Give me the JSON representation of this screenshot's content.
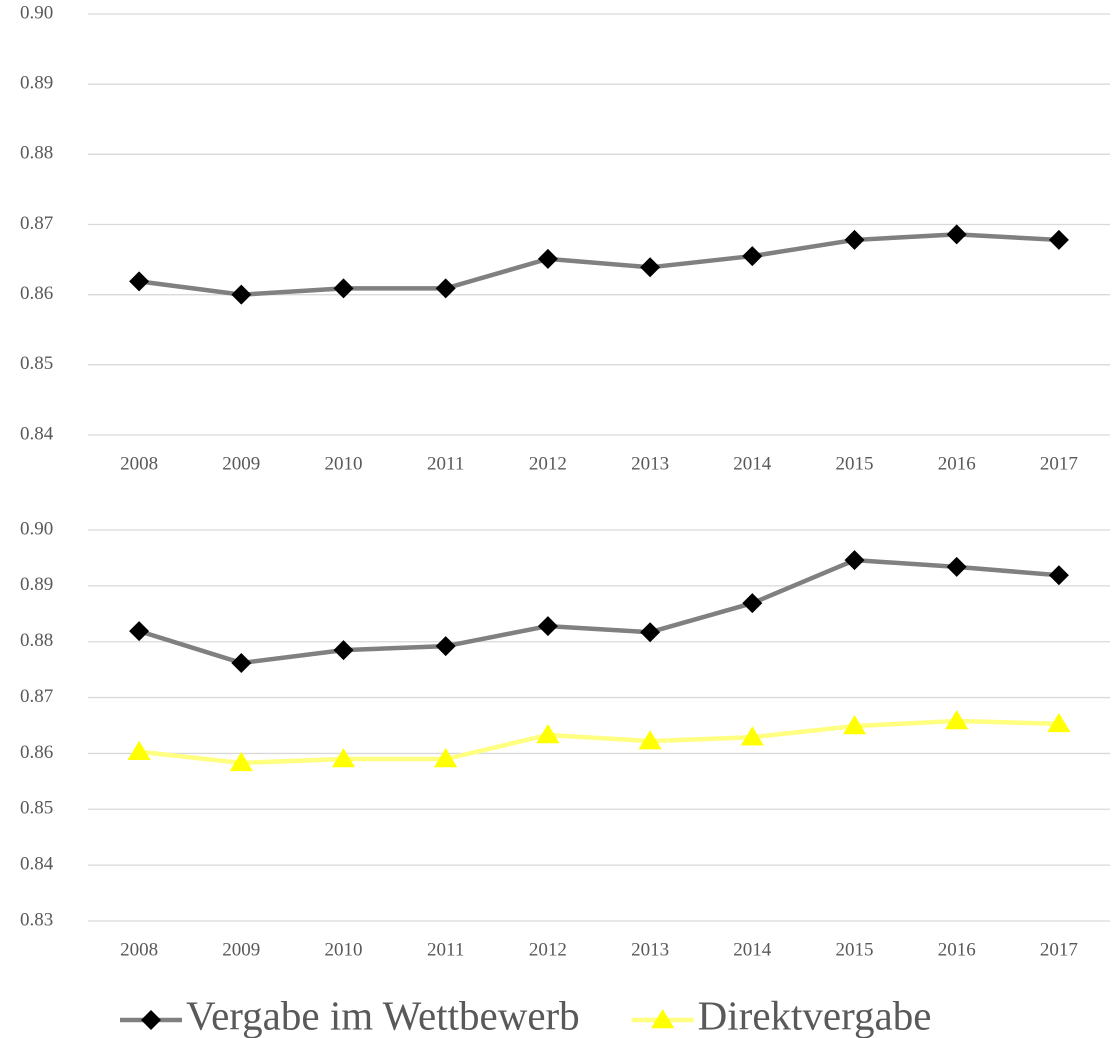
{
  "chart_data": [
    {
      "type": "line",
      "categories": [
        "2008",
        "2009",
        "2010",
        "2011",
        "2012",
        "2013",
        "2014",
        "2015",
        "2016",
        "2017"
      ],
      "series": [
        {
          "color": "#808080",
          "marker": "diamond",
          "marker_color": "#000000",
          "values": [
            0.8619,
            0.86,
            0.8609,
            0.8609,
            0.8651,
            0.8639,
            0.8655,
            0.8678,
            0.8686,
            0.8678
          ]
        }
      ],
      "ylim": [
        0.84,
        0.9
      ],
      "yticks": [
        0.84,
        0.85,
        0.86,
        0.87,
        0.88,
        0.89,
        {
          "value": 0.9,
          "label": "0.90"
        }
      ],
      "grid": true
    },
    {
      "type": "line",
      "categories": [
        "2008",
        "2009",
        "2010",
        "2011",
        "2012",
        "2013",
        "2014",
        "2015",
        "2016",
        "2017"
      ],
      "series": [
        {
          "name": "Vergabe im Wettbewerb",
          "color": "#808080",
          "marker": "diamond",
          "marker_color": "#000000",
          "values": [
            0.8819,
            0.8762,
            0.8785,
            0.8792,
            0.8828,
            0.8817,
            0.8869,
            0.8946,
            0.8934,
            0.8919
          ]
        },
        {
          "name": "Direktvergabe",
          "color": "#ffff80",
          "marker": "triangle",
          "marker_color": "#ffff00",
          "values": [
            0.8603,
            0.8583,
            0.859,
            0.859,
            0.8633,
            0.8622,
            0.8629,
            0.8649,
            0.8658,
            0.8653
          ]
        }
      ],
      "ylim": [
        0.83,
        0.9
      ],
      "yticks": [
        0.83,
        0.84,
        0.85,
        0.86,
        0.87,
        0.88,
        0.89,
        {
          "value": 0.9,
          "label": "0.90"
        }
      ],
      "grid": true,
      "legend": "bottom"
    }
  ]
}
